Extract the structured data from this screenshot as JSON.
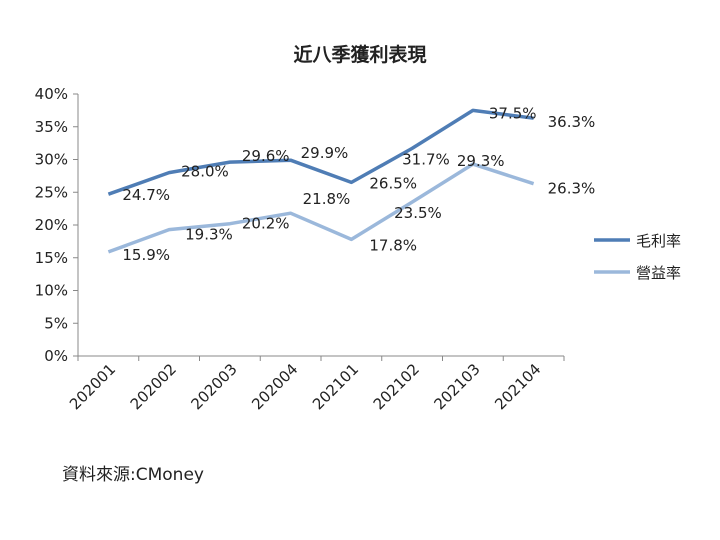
{
  "chart_data": {
    "type": "line",
    "title": "近八季獲利表現",
    "categories": [
      "202001",
      "202002",
      "202003",
      "202004",
      "202101",
      "202102",
      "202103",
      "202104"
    ],
    "ylim": [
      0,
      40
    ],
    "yticks": [
      "0%",
      "5%",
      "10%",
      "15%",
      "20%",
      "25%",
      "30%",
      "35%",
      "40%"
    ],
    "grid": false,
    "legend_position": "right",
    "series": [
      {
        "name": "毛利率",
        "color": "#4F7DB5",
        "values": [
          24.7,
          28.0,
          29.6,
          29.9,
          26.5,
          31.7,
          37.5,
          36.3
        ],
        "labels": [
          "24.7%",
          "28.0%",
          "29.6%",
          "29.9%",
          "26.5%",
          "31.7%",
          "37.5%",
          "36.3%"
        ]
      },
      {
        "name": "營益率",
        "color": "#9BB8DB",
        "values": [
          15.9,
          19.3,
          20.2,
          21.8,
          17.8,
          23.5,
          29.3,
          26.3
        ],
        "labels": [
          "15.9%",
          "19.3%",
          "20.2%",
          "21.8%",
          "17.8%",
          "23.5%",
          "29.3%",
          "26.3%"
        ]
      }
    ]
  },
  "source": "資料來源:CMoney"
}
